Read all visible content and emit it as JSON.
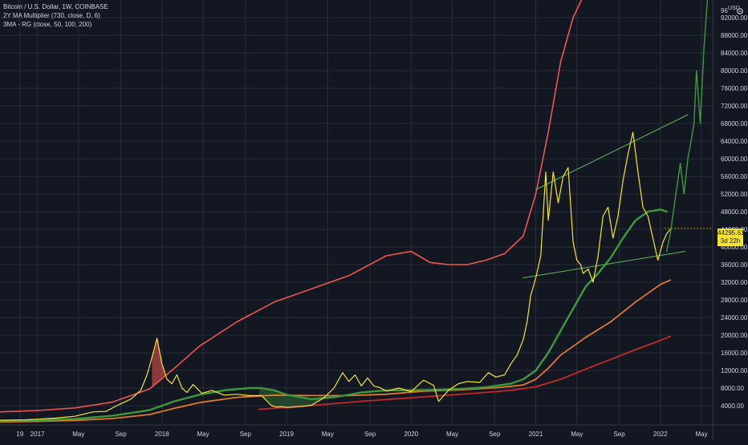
{
  "legend": {
    "symbol": "Bitcoin / U.S. Dollar, 1W, COINBASE",
    "indicator1": "2Y MA Multiplier (730, close, D, 6)",
    "indicator2": "3MA - RG (close, 50, 100, 200)"
  },
  "price_label": {
    "value": "44295.61",
    "countdown": "3d 22h"
  },
  "axis_top": {
    "value": "96",
    "currency": "USD"
  },
  "settings_icon": "gear-icon",
  "colors": {
    "background": "#131722",
    "grid": "#2a2e39",
    "axis_text": "#d1d4dc",
    "price": "#f5e42b",
    "ma_top": "#f05650",
    "ma50": "#3c9a3c",
    "ma100": "#e07b24",
    "ma200": "#c62828",
    "trendline": "#5cb85c"
  },
  "chart_data": {
    "type": "line",
    "x_ticks": [
      "19",
      "2017",
      "May",
      "Sep",
      "2018",
      "May",
      "Sep",
      "2019",
      "May",
      "Sep",
      "2020",
      "May",
      "Sep",
      "2021",
      "May",
      "Sep",
      "2022",
      "May"
    ],
    "y_ticks": [
      "4000.00",
      "8000.00",
      "12000.00",
      "16000.00",
      "20000.00",
      "24000.00",
      "28000.00",
      "32000.00",
      "36000.00",
      "40000.00",
      "44000.00",
      "48000.00",
      "52000.00",
      "56000.00",
      "60000.00",
      "64000.00",
      "68000.00",
      "72000.00",
      "76000.00",
      "80000.00",
      "84000.00",
      "88000.00",
      "92000.00"
    ],
    "ylim": [
      0,
      96000
    ],
    "xlim": [
      2016.7,
      2022.42
    ],
    "series": [
      {
        "key": "price",
        "x": [
          2016.7,
          2016.9,
          2017.0,
          2017.15,
          2017.3,
          2017.45,
          2017.55,
          2017.65,
          2017.75,
          2017.83,
          2017.88,
          2017.92,
          2017.96,
          2018.0,
          2018.04,
          2018.08,
          2018.12,
          2018.16,
          2018.2,
          2018.25,
          2018.32,
          2018.4,
          2018.5,
          2018.6,
          2018.7,
          2018.8,
          2018.88,
          2018.92,
          2018.96,
          2019.0,
          2019.1,
          2019.2,
          2019.3,
          2019.38,
          2019.45,
          2019.5,
          2019.55,
          2019.6,
          2019.65,
          2019.7,
          2019.75,
          2019.8,
          2019.9,
          2020.0,
          2020.1,
          2020.18,
          2020.22,
          2020.3,
          2020.38,
          2020.45,
          2020.55,
          2020.62,
          2020.68,
          2020.75,
          2020.8,
          2020.85,
          2020.9,
          2020.93,
          2020.96,
          2021.0,
          2021.04,
          2021.08,
          2021.1,
          2021.14,
          2021.18,
          2021.22,
          2021.26,
          2021.3,
          2021.33,
          2021.36,
          2021.38,
          2021.42,
          2021.46,
          2021.5,
          2021.54,
          2021.58,
          2021.62,
          2021.66,
          2021.7,
          2021.74,
          2021.78,
          2021.82,
          2021.86,
          2021.9,
          2021.94,
          2021.98,
          2022.02,
          2022.05,
          2022.08
        ],
        "y": [
          700,
          800,
          950,
          1200,
          1600,
          2600,
          2700,
          4200,
          5500,
          7500,
          11000,
          15000,
          19300,
          13500,
          10000,
          9000,
          11000,
          8000,
          7000,
          8800,
          6800,
          7500,
          6400,
          6600,
          6300,
          6300,
          4000,
          3700,
          3800,
          3600,
          3800,
          4100,
          5800,
          8000,
          11500,
          9500,
          11000,
          8500,
          10300,
          8500,
          8100,
          7300,
          8000,
          7200,
          9800,
          8600,
          5000,
          7500,
          9000,
          9500,
          9300,
          11500,
          10500,
          11000,
          13500,
          15500,
          19000,
          23000,
          29000,
          33000,
          38000,
          57000,
          46000,
          57000,
          50000,
          56000,
          58000,
          41000,
          37000,
          36000,
          34000,
          35000,
          32000,
          38000,
          47000,
          49000,
          42000,
          47000,
          55000,
          61000,
          66000,
          57000,
          49000,
          47000,
          42000,
          37000,
          41000,
          43000,
          44000
        ]
      },
      {
        "key": "ma_top",
        "x": [
          2016.7,
          2017.0,
          2017.3,
          2017.6,
          2017.9,
          2018.1,
          2018.3,
          2018.6,
          2018.9,
          2019.2,
          2019.5,
          2019.8,
          2020.0,
          2020.15,
          2020.3,
          2020.45,
          2020.6,
          2020.75,
          2020.9,
          2021.0,
          2021.1,
          2021.2,
          2021.3,
          2021.4
        ],
        "y": [
          2600,
          2900,
          3500,
          4800,
          7800,
          12500,
          17500,
          23000,
          27500,
          30500,
          33500,
          38000,
          39000,
          36500,
          36000,
          36000,
          37000,
          38500,
          42500,
          52000,
          66000,
          82000,
          92000,
          98000
        ]
      },
      {
        "key": "ma50",
        "x": [
          2016.7,
          2017.0,
          2017.3,
          2017.6,
          2017.9,
          2018.1,
          2018.3,
          2018.5,
          2018.7,
          2018.8,
          2018.9,
          2019.0,
          2019.2,
          2019.4,
          2019.6,
          2019.8,
          2020.0,
          2020.2,
          2020.4,
          2020.6,
          2020.8,
          2020.9,
          2021.0,
          2021.1,
          2021.2,
          2021.3,
          2021.4,
          2021.5,
          2021.6,
          2021.7,
          2021.8,
          2021.9,
          2022.0,
          2022.05
        ],
        "y": [
          500,
          700,
          1000,
          1700,
          3000,
          5000,
          6500,
          7500,
          8000,
          8000,
          7500,
          6500,
          5500,
          6000,
          7000,
          7500,
          7500,
          7600,
          7800,
          8200,
          9000,
          10000,
          12000,
          16000,
          21000,
          26000,
          31000,
          34000,
          37500,
          42000,
          46000,
          48000,
          48500,
          48000
        ]
      },
      {
        "key": "ma100",
        "x": [
          2016.7,
          2017.0,
          2017.3,
          2017.6,
          2017.9,
          2018.1,
          2018.3,
          2018.6,
          2018.9,
          2019.2,
          2019.5,
          2019.8,
          2020.1,
          2020.4,
          2020.7,
          2020.9,
          2021.0,
          2021.1,
          2021.2,
          2021.4,
          2021.6,
          2021.8,
          2022.0,
          2022.08
        ],
        "y": [
          300,
          450,
          650,
          1100,
          2000,
          3400,
          4700,
          5900,
          6400,
          6300,
          6300,
          6600,
          7300,
          7600,
          8100,
          8700,
          10000,
          12500,
          15500,
          19500,
          23000,
          27500,
          31500,
          32500
        ]
      },
      {
        "key": "ma200",
        "x": [
          2018.78,
          2019.0,
          2019.3,
          2019.6,
          2019.9,
          2020.2,
          2020.5,
          2020.8,
          2021.0,
          2021.2,
          2021.4,
          2021.6,
          2021.8,
          2022.0,
          2022.08
        ],
        "y": [
          3200,
          3600,
          4300,
          5000,
          5600,
          6200,
          6800,
          7500,
          8300,
          10000,
          12300,
          14500,
          16700,
          18800,
          19700
        ]
      },
      {
        "key": "price_forward",
        "x": [
          2022.05,
          2022.08,
          2022.12,
          2022.16,
          2022.19,
          2022.22,
          2022.24,
          2022.27,
          2022.29,
          2022.32,
          2022.35,
          2022.38
        ],
        "y": [
          39000,
          43000,
          51000,
          59000,
          52000,
          60000,
          63000,
          68000,
          80000,
          68000,
          85000,
          97000
        ]
      },
      {
        "key": "trend_upper",
        "x": [
          2021.0,
          2022.22
        ],
        "y": [
          53000,
          70000
        ]
      },
      {
        "key": "trend_lower",
        "x": [
          2020.9,
          2022.2
        ],
        "y": [
          33000,
          39000
        ]
      }
    ]
  }
}
